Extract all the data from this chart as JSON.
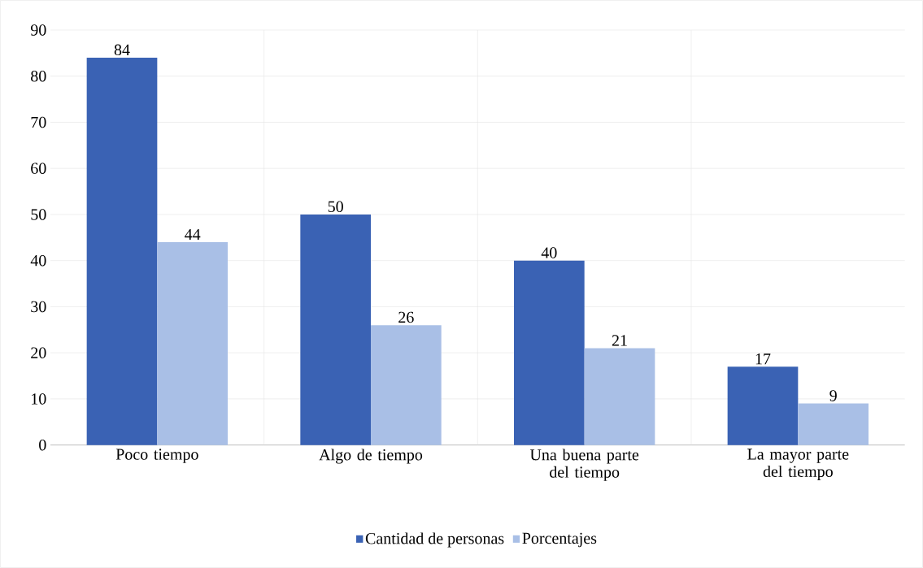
{
  "chart_data": {
    "type": "bar",
    "categories": [
      "Poco tiempo",
      "Algo de tiempo",
      "Una buena parte del tiempo",
      "La mayor parte del tiempo"
    ],
    "series": [
      {
        "name": "Cantidad de personas",
        "color": "#3a62b4",
        "values": [
          84,
          50,
          40,
          17
        ]
      },
      {
        "name": "Porcentajes",
        "color": "#a9bfe6",
        "values": [
          44,
          26,
          21,
          9
        ]
      }
    ],
    "ylim": [
      0,
      90
    ],
    "yticks": [
      0,
      10,
      20,
      30,
      40,
      50,
      60,
      70,
      80,
      90
    ],
    "grid": true,
    "legend": "bottom",
    "data_labels": true
  }
}
